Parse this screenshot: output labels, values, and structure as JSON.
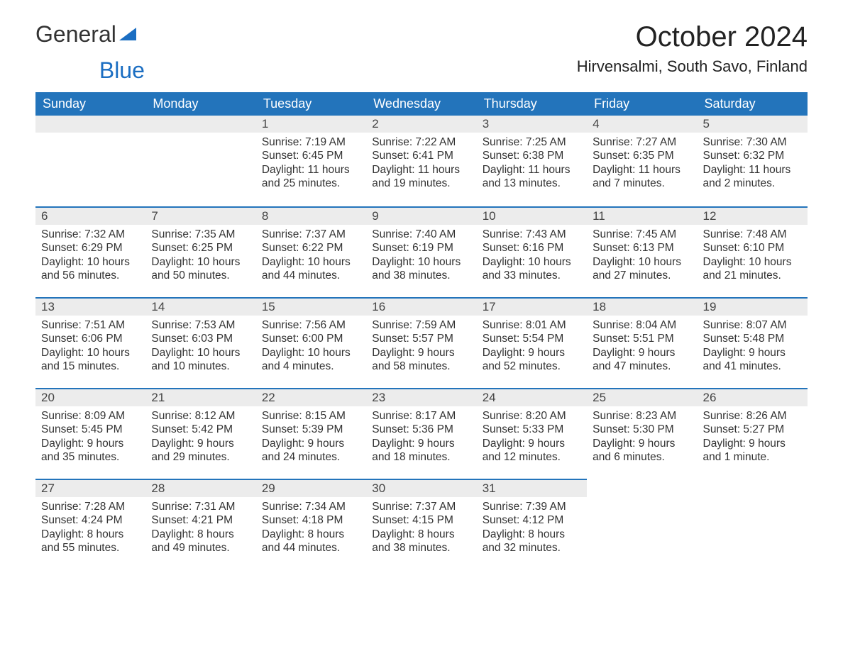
{
  "logo": {
    "general": "General",
    "blue": "Blue"
  },
  "title": "October 2024",
  "location": "Hirvensalmi, South Savo, Finland",
  "colors": {
    "header_bg": "#2374bb",
    "header_text": "#ffffff",
    "daynum_bg": "#ececec",
    "row_border": "#2374bb",
    "body_text": "#333333",
    "logo_blue": "#1b6ec2",
    "page_bg": "#ffffff"
  },
  "fonts": {
    "title_size_pt": 30,
    "location_size_pt": 16,
    "header_size_pt": 13,
    "body_size_pt": 11
  },
  "weekdays": [
    "Sunday",
    "Monday",
    "Tuesday",
    "Wednesday",
    "Thursday",
    "Friday",
    "Saturday"
  ],
  "weeks": [
    [
      {
        "empty": true
      },
      {
        "empty": true
      },
      {
        "day": "1",
        "sunrise": "Sunrise: 7:19 AM",
        "sunset": "Sunset: 6:45 PM",
        "daylight1": "Daylight: 11 hours",
        "daylight2": "and 25 minutes."
      },
      {
        "day": "2",
        "sunrise": "Sunrise: 7:22 AM",
        "sunset": "Sunset: 6:41 PM",
        "daylight1": "Daylight: 11 hours",
        "daylight2": "and 19 minutes."
      },
      {
        "day": "3",
        "sunrise": "Sunrise: 7:25 AM",
        "sunset": "Sunset: 6:38 PM",
        "daylight1": "Daylight: 11 hours",
        "daylight2": "and 13 minutes."
      },
      {
        "day": "4",
        "sunrise": "Sunrise: 7:27 AM",
        "sunset": "Sunset: 6:35 PM",
        "daylight1": "Daylight: 11 hours",
        "daylight2": "and 7 minutes."
      },
      {
        "day": "5",
        "sunrise": "Sunrise: 7:30 AM",
        "sunset": "Sunset: 6:32 PM",
        "daylight1": "Daylight: 11 hours",
        "daylight2": "and 2 minutes."
      }
    ],
    [
      {
        "day": "6",
        "sunrise": "Sunrise: 7:32 AM",
        "sunset": "Sunset: 6:29 PM",
        "daylight1": "Daylight: 10 hours",
        "daylight2": "and 56 minutes."
      },
      {
        "day": "7",
        "sunrise": "Sunrise: 7:35 AM",
        "sunset": "Sunset: 6:25 PM",
        "daylight1": "Daylight: 10 hours",
        "daylight2": "and 50 minutes."
      },
      {
        "day": "8",
        "sunrise": "Sunrise: 7:37 AM",
        "sunset": "Sunset: 6:22 PM",
        "daylight1": "Daylight: 10 hours",
        "daylight2": "and 44 minutes."
      },
      {
        "day": "9",
        "sunrise": "Sunrise: 7:40 AM",
        "sunset": "Sunset: 6:19 PM",
        "daylight1": "Daylight: 10 hours",
        "daylight2": "and 38 minutes."
      },
      {
        "day": "10",
        "sunrise": "Sunrise: 7:43 AM",
        "sunset": "Sunset: 6:16 PM",
        "daylight1": "Daylight: 10 hours",
        "daylight2": "and 33 minutes."
      },
      {
        "day": "11",
        "sunrise": "Sunrise: 7:45 AM",
        "sunset": "Sunset: 6:13 PM",
        "daylight1": "Daylight: 10 hours",
        "daylight2": "and 27 minutes."
      },
      {
        "day": "12",
        "sunrise": "Sunrise: 7:48 AM",
        "sunset": "Sunset: 6:10 PM",
        "daylight1": "Daylight: 10 hours",
        "daylight2": "and 21 minutes."
      }
    ],
    [
      {
        "day": "13",
        "sunrise": "Sunrise: 7:51 AM",
        "sunset": "Sunset: 6:06 PM",
        "daylight1": "Daylight: 10 hours",
        "daylight2": "and 15 minutes."
      },
      {
        "day": "14",
        "sunrise": "Sunrise: 7:53 AM",
        "sunset": "Sunset: 6:03 PM",
        "daylight1": "Daylight: 10 hours",
        "daylight2": "and 10 minutes."
      },
      {
        "day": "15",
        "sunrise": "Sunrise: 7:56 AM",
        "sunset": "Sunset: 6:00 PM",
        "daylight1": "Daylight: 10 hours",
        "daylight2": "and 4 minutes."
      },
      {
        "day": "16",
        "sunrise": "Sunrise: 7:59 AM",
        "sunset": "Sunset: 5:57 PM",
        "daylight1": "Daylight: 9 hours",
        "daylight2": "and 58 minutes."
      },
      {
        "day": "17",
        "sunrise": "Sunrise: 8:01 AM",
        "sunset": "Sunset: 5:54 PM",
        "daylight1": "Daylight: 9 hours",
        "daylight2": "and 52 minutes."
      },
      {
        "day": "18",
        "sunrise": "Sunrise: 8:04 AM",
        "sunset": "Sunset: 5:51 PM",
        "daylight1": "Daylight: 9 hours",
        "daylight2": "and 47 minutes."
      },
      {
        "day": "19",
        "sunrise": "Sunrise: 8:07 AM",
        "sunset": "Sunset: 5:48 PM",
        "daylight1": "Daylight: 9 hours",
        "daylight2": "and 41 minutes."
      }
    ],
    [
      {
        "day": "20",
        "sunrise": "Sunrise: 8:09 AM",
        "sunset": "Sunset: 5:45 PM",
        "daylight1": "Daylight: 9 hours",
        "daylight2": "and 35 minutes."
      },
      {
        "day": "21",
        "sunrise": "Sunrise: 8:12 AM",
        "sunset": "Sunset: 5:42 PM",
        "daylight1": "Daylight: 9 hours",
        "daylight2": "and 29 minutes."
      },
      {
        "day": "22",
        "sunrise": "Sunrise: 8:15 AM",
        "sunset": "Sunset: 5:39 PM",
        "daylight1": "Daylight: 9 hours",
        "daylight2": "and 24 minutes."
      },
      {
        "day": "23",
        "sunrise": "Sunrise: 8:17 AM",
        "sunset": "Sunset: 5:36 PM",
        "daylight1": "Daylight: 9 hours",
        "daylight2": "and 18 minutes."
      },
      {
        "day": "24",
        "sunrise": "Sunrise: 8:20 AM",
        "sunset": "Sunset: 5:33 PM",
        "daylight1": "Daylight: 9 hours",
        "daylight2": "and 12 minutes."
      },
      {
        "day": "25",
        "sunrise": "Sunrise: 8:23 AM",
        "sunset": "Sunset: 5:30 PM",
        "daylight1": "Daylight: 9 hours",
        "daylight2": "and 6 minutes."
      },
      {
        "day": "26",
        "sunrise": "Sunrise: 8:26 AM",
        "sunset": "Sunset: 5:27 PM",
        "daylight1": "Daylight: 9 hours",
        "daylight2": "and 1 minute."
      }
    ],
    [
      {
        "day": "27",
        "sunrise": "Sunrise: 7:28 AM",
        "sunset": "Sunset: 4:24 PM",
        "daylight1": "Daylight: 8 hours",
        "daylight2": "and 55 minutes."
      },
      {
        "day": "28",
        "sunrise": "Sunrise: 7:31 AM",
        "sunset": "Sunset: 4:21 PM",
        "daylight1": "Daylight: 8 hours",
        "daylight2": "and 49 minutes."
      },
      {
        "day": "29",
        "sunrise": "Sunrise: 7:34 AM",
        "sunset": "Sunset: 4:18 PM",
        "daylight1": "Daylight: 8 hours",
        "daylight2": "and 44 minutes."
      },
      {
        "day": "30",
        "sunrise": "Sunrise: 7:37 AM",
        "sunset": "Sunset: 4:15 PM",
        "daylight1": "Daylight: 8 hours",
        "daylight2": "and 38 minutes."
      },
      {
        "day": "31",
        "sunrise": "Sunrise: 7:39 AM",
        "sunset": "Sunset: 4:12 PM",
        "daylight1": "Daylight: 8 hours",
        "daylight2": "and 32 minutes."
      },
      {
        "empty": true,
        "trailing": true
      },
      {
        "empty": true,
        "trailing": true
      }
    ]
  ]
}
